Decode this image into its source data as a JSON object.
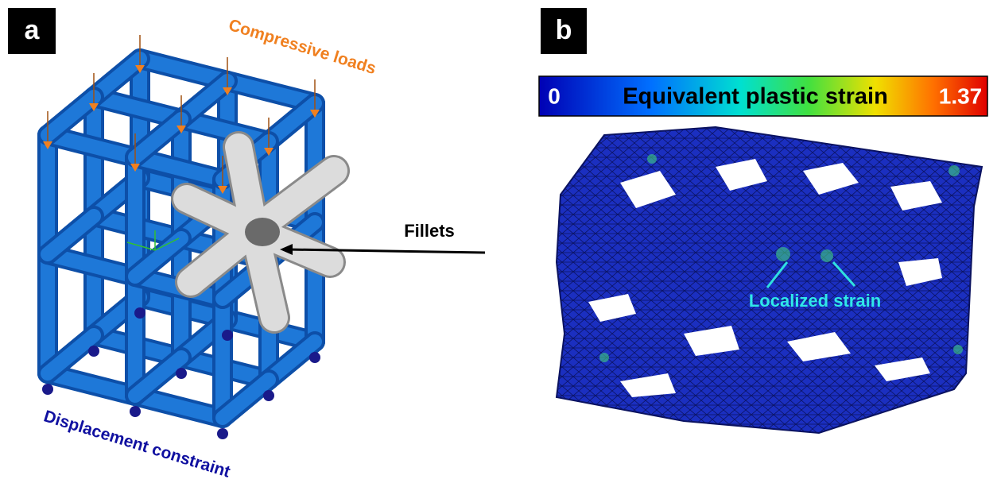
{
  "panel_a": {
    "label": "a",
    "loads_label": "Compressive loads",
    "fillets_label": "Fillets",
    "constraint_label": "Displacement constraint"
  },
  "panel_b": {
    "label": "b",
    "colorbar": {
      "min": 0,
      "title": "Equivalent plastic strain",
      "max": 1.37
    },
    "strain_label": "Localized strain"
  }
}
